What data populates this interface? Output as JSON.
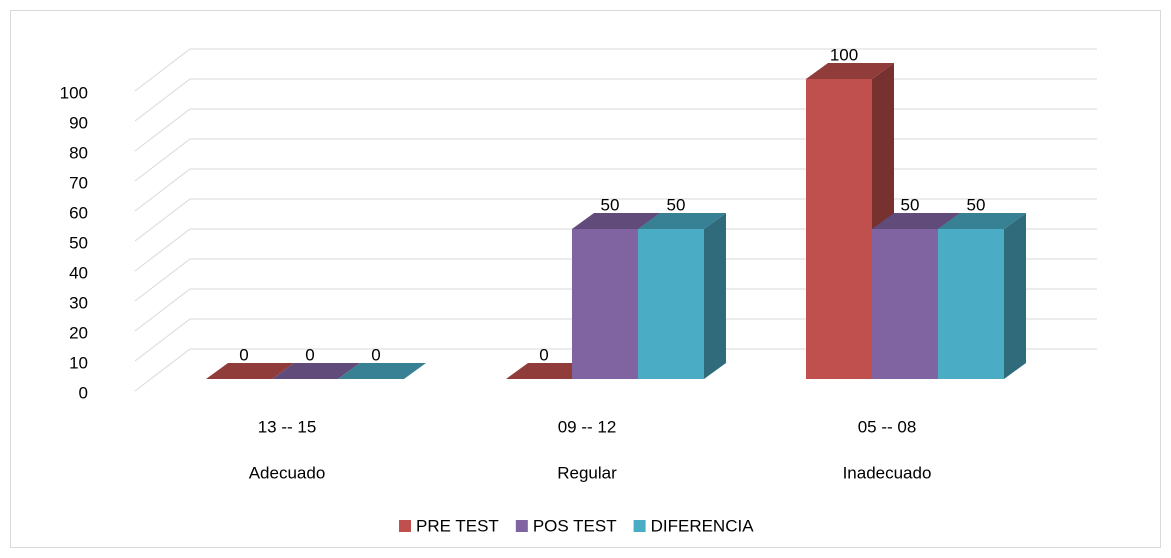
{
  "chart_data": {
    "type": "bar3d",
    "categories": [
      "13 -- 15",
      "09 -- 12",
      "05 -- 08"
    ],
    "category_groups": [
      "Adecuado",
      "Regular",
      "Inadecuado"
    ],
    "series": [
      {
        "name": "PRE TEST",
        "color": "#c0504d",
        "values": [
          0,
          0,
          100
        ]
      },
      {
        "name": "POS TEST",
        "color": "#8064a2",
        "values": [
          0,
          50,
          50
        ]
      },
      {
        "name": "DIFERENCIA",
        "color": "#4bacc6",
        "values": [
          0,
          50,
          50
        ]
      }
    ],
    "ylim": [
      0,
      100
    ],
    "yticks": [
      0,
      10,
      20,
      30,
      40,
      50,
      60,
      70,
      80,
      90,
      100
    ],
    "grid": true,
    "legend": "bottom"
  }
}
